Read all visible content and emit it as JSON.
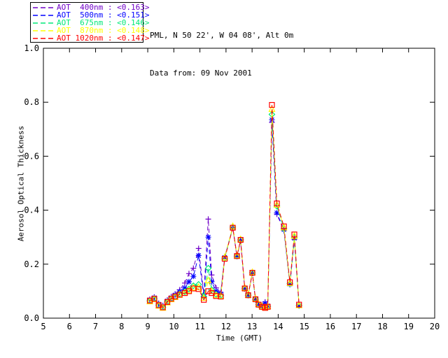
{
  "header": {
    "station_line": "PML, N 50 22', W 04 08', Alt 0m",
    "date_line": "Data from: 09 Nov 2001"
  },
  "chart_data": {
    "type": "line",
    "title": "PML, N 50 22', W 04 08', Alt 0m",
    "subtitle": "Data from: 09 Nov 2001",
    "xlabel": "Time (GMT)",
    "ylabel": "Aerosol Optical Thickness",
    "xlim": [
      5,
      20
    ],
    "ylim": [
      0.0,
      1.0
    ],
    "xticks": [
      5,
      6,
      7,
      8,
      9,
      10,
      11,
      12,
      13,
      14,
      15,
      16,
      17,
      18,
      19,
      20
    ],
    "yticks": [
      0.0,
      0.2,
      0.4,
      0.6,
      0.8,
      1.0
    ],
    "grid": false,
    "legend_position": "top-left-outside",
    "line_style": "dashed",
    "x": [
      9.08,
      9.25,
      9.42,
      9.58,
      9.75,
      9.9,
      10.05,
      10.22,
      10.42,
      10.58,
      10.75,
      10.95,
      11.15,
      11.32,
      11.45,
      11.62,
      11.8,
      11.95,
      12.26,
      12.42,
      12.56,
      12.72,
      12.85,
      13.01,
      13.13,
      13.25,
      13.38,
      13.5,
      13.6,
      13.76,
      13.95,
      14.22,
      14.45,
      14.62,
      14.8
    ],
    "series": [
      {
        "name": "AOT  400nm",
        "mean_label": "<0.163>",
        "color": "#7000C8",
        "marker": "plus",
        "values": [
          0.07,
          0.078,
          0.055,
          0.047,
          0.067,
          0.08,
          0.09,
          0.105,
          0.13,
          0.165,
          0.185,
          0.258,
          0.09,
          0.367,
          0.16,
          0.112,
          0.095,
          0.228,
          0.335,
          0.228,
          0.285,
          0.108,
          0.085,
          0.166,
          0.068,
          0.05,
          0.043,
          0.06,
          0.045,
          0.725,
          0.385,
          0.325,
          0.124,
          0.292,
          0.045
        ]
      },
      {
        "name": "AOT  500nm",
        "mean_label": "<0.151>",
        "color": "#0000FF",
        "marker": "asterisk",
        "values": [
          0.068,
          0.076,
          0.052,
          0.044,
          0.064,
          0.076,
          0.086,
          0.098,
          0.112,
          0.135,
          0.155,
          0.232,
          0.08,
          0.3,
          0.135,
          0.1,
          0.09,
          0.225,
          0.336,
          0.23,
          0.288,
          0.11,
          0.086,
          0.168,
          0.07,
          0.052,
          0.045,
          0.055,
          0.046,
          0.735,
          0.39,
          0.328,
          0.126,
          0.296,
          0.046
        ]
      },
      {
        "name": "AOT  675nm",
        "mean_label": "<0.146>",
        "color": "#00E878",
        "marker": "diamond",
        "values": [
          0.064,
          0.072,
          0.048,
          0.04,
          0.06,
          0.072,
          0.08,
          0.09,
          0.098,
          0.108,
          0.12,
          0.125,
          0.08,
          0.185,
          0.105,
          0.088,
          0.084,
          0.222,
          0.337,
          0.23,
          0.29,
          0.11,
          0.085,
          0.168,
          0.07,
          0.05,
          0.042,
          0.04,
          0.043,
          0.755,
          0.415,
          0.332,
          0.128,
          0.3,
          0.047
        ]
      },
      {
        "name": "AOT  870nm",
        "mean_label": "<0.148>",
        "color": "#FFFF00",
        "marker": "triangle",
        "values": [
          0.062,
          0.07,
          0.046,
          0.038,
          0.058,
          0.07,
          0.078,
          0.086,
          0.094,
          0.103,
          0.113,
          0.115,
          0.075,
          0.14,
          0.1,
          0.085,
          0.082,
          0.225,
          0.34,
          0.232,
          0.292,
          0.112,
          0.086,
          0.17,
          0.072,
          0.052,
          0.044,
          0.04,
          0.044,
          0.775,
          0.42,
          0.336,
          0.13,
          0.305,
          0.048
        ]
      },
      {
        "name": "AOT 1020nm",
        "mean_label": "<0.147>",
        "color": "#FF0000",
        "marker": "square",
        "values": [
          0.065,
          0.072,
          0.048,
          0.04,
          0.06,
          0.072,
          0.08,
          0.087,
          0.093,
          0.1,
          0.11,
          0.108,
          0.068,
          0.1,
          0.093,
          0.082,
          0.08,
          0.22,
          0.335,
          0.23,
          0.29,
          0.11,
          0.085,
          0.168,
          0.07,
          0.05,
          0.042,
          0.038,
          0.042,
          0.79,
          0.425,
          0.34,
          0.133,
          0.31,
          0.05
        ]
      }
    ]
  }
}
